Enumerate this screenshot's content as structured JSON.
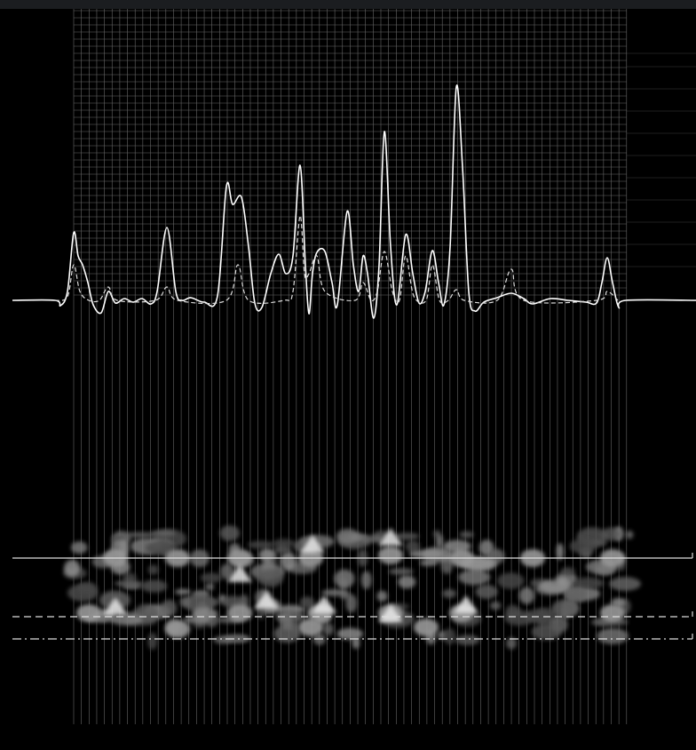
{
  "chart_data": {
    "type": "line",
    "xlim": [
      14,
      784
    ],
    "ylim": [
      -20,
      250
    ],
    "series": [
      {
        "color": "#ffffff",
        "style": "solid",
        "x": [
          14,
          62,
          68,
          76,
          83,
          88,
          93,
          99,
          105,
          114,
          122,
          130,
          140,
          150,
          160,
          170,
          177,
          188,
          198,
          205,
          215,
          230,
          245,
          255,
          262,
          272,
          280,
          287,
          295,
          305,
          314,
          322,
          330,
          338,
          344,
          348,
          352,
          357,
          366,
          374,
          380,
          391,
          398,
          404,
          409,
          414,
          421,
          427,
          433,
          440,
          447,
          457,
          465,
          472,
          479,
          487,
          494,
          500,
          507,
          514,
          521,
          528,
          535,
          545,
          560,
          576,
          590,
          600,
          620,
          640,
          660,
          672,
          678,
          684,
          690,
          697,
          705,
          784
        ],
        "values": [
          0,
          0,
          -6,
          10,
          76,
          50,
          40,
          20,
          -5,
          -14,
          10,
          -3,
          2,
          -2,
          2,
          -4,
          10,
          82,
          10,
          0,
          3,
          -2,
          5,
          128,
          108,
          116,
          60,
          -3,
          -8,
          30,
          52,
          30,
          50,
          152,
          40,
          -15,
          30,
          54,
          55,
          20,
          -5,
          100,
          40,
          10,
          50,
          30,
          -20,
          40,
          190,
          60,
          -5,
          74,
          30,
          -3,
          10,
          56,
          20,
          -5,
          60,
          240,
          150,
          10,
          -12,
          -2,
          3,
          8,
          2,
          -4,
          2,
          0,
          -2,
          -3,
          20,
          48,
          20,
          -8,
          0,
          0
        ]
      },
      {
        "color": "#dddddd",
        "style": "dashed",
        "x": [
          62,
          76,
          83,
          90,
          100,
          112,
          122,
          132,
          175,
          188,
          200,
          255,
          268,
          280,
          320,
          330,
          338,
          343,
          348,
          357,
          366,
          400,
          409,
          418,
          425,
          433,
          442,
          450,
          457,
          466,
          480,
          487,
          495,
          505,
          514,
          523,
          560,
          576,
          590,
          672,
          684,
          696
        ],
        "values": [
          0,
          4,
          40,
          10,
          0,
          0,
          15,
          0,
          0,
          15,
          0,
          0,
          40,
          0,
          0,
          10,
          95,
          30,
          30,
          50,
          10,
          0,
          20,
          0,
          10,
          55,
          10,
          0,
          50,
          5,
          0,
          40,
          0,
          0,
          12,
          0,
          0,
          35,
          0,
          0,
          10,
          0
        ]
      }
    ]
  }
}
